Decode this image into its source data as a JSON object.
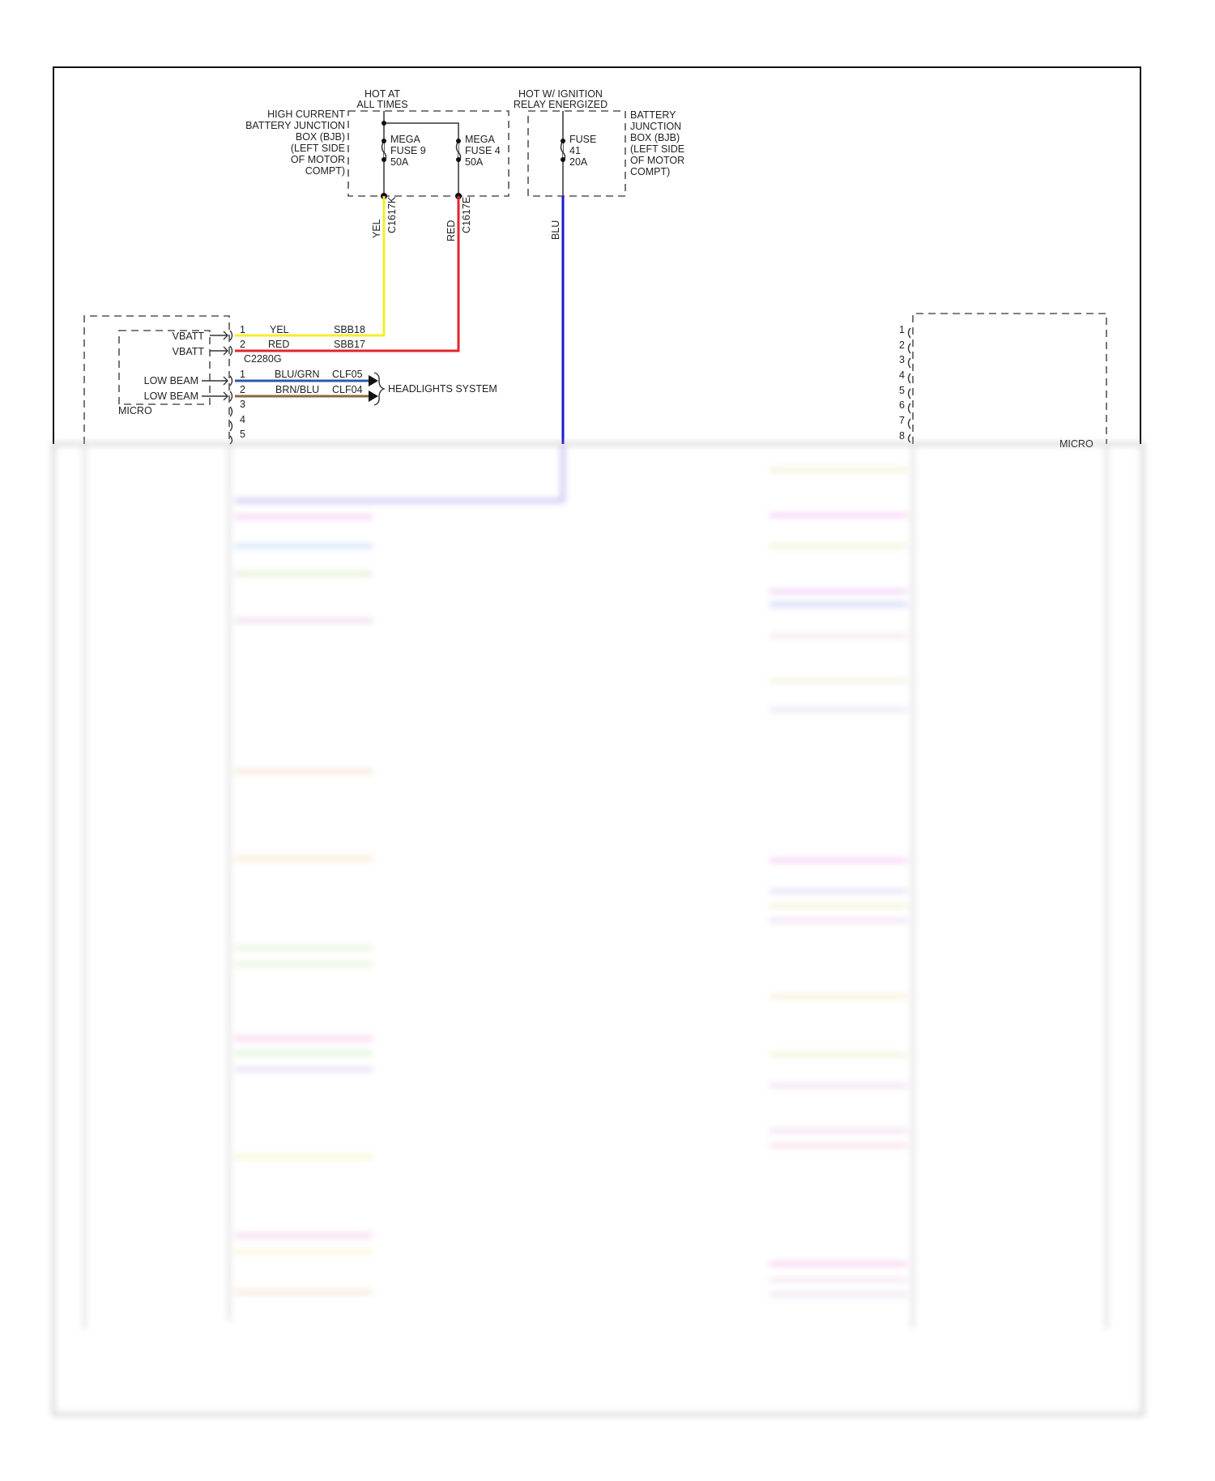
{
  "power": {
    "hot_at_all_times": [
      "HOT AT",
      "ALL TIMES"
    ],
    "hot_ignition": [
      "HOT W/ IGNITION",
      "RELAY ENERGIZED"
    ],
    "high_current_bjb": [
      "HIGH CURRENT",
      "BATTERY JUNCTION",
      "BOX (BJB)",
      "(LEFT SIDE",
      "OF MOTOR",
      "COMPT)"
    ],
    "bjb": [
      "BATTERY",
      "JUNCTION",
      "BOX (BJB)",
      "(LEFT SIDE",
      "OF MOTOR",
      "COMPT)"
    ],
    "fuse9": [
      "MEGA",
      "FUSE 9",
      "50A"
    ],
    "fuse4": [
      "MEGA",
      "FUSE 4",
      "50A"
    ],
    "fuse41": [
      "FUSE",
      "41",
      "20A"
    ]
  },
  "wires": {
    "yel": {
      "color_label": "YEL",
      "connector": "C1617K",
      "pin": "1",
      "circuit": "SBB18",
      "color": "#f5ee2a"
    },
    "red": {
      "color_label": "RED",
      "connector": "C1617E",
      "pin": "2",
      "circuit": "SBB17",
      "color": "#e0262a"
    },
    "blu": {
      "color_label": "BLU",
      "color": "#1a1ad0"
    },
    "blu_grn": {
      "pin": "1",
      "color_label": "BLU/GRN",
      "circuit": "CLF05",
      "color": "#2a5aa8"
    },
    "brn_blu": {
      "pin": "2",
      "color_label": "BRN/BLU",
      "circuit": "CLF04",
      "color": "#8a6a3a"
    }
  },
  "left_module": {
    "inputs": [
      "VBATT",
      "VBATT"
    ],
    "connector": "C2280G",
    "outputs": [
      "LOW BEAM",
      "LOW BEAM"
    ],
    "micro_label": "MICRO",
    "extra_pins": [
      "3",
      "4",
      "5"
    ],
    "destination": "HEADLIGHTS SYSTEM"
  },
  "right_module": {
    "pins": [
      "1",
      "2",
      "3",
      "4",
      "5",
      "6",
      "7",
      "8"
    ],
    "micro_label": "MICRO"
  }
}
